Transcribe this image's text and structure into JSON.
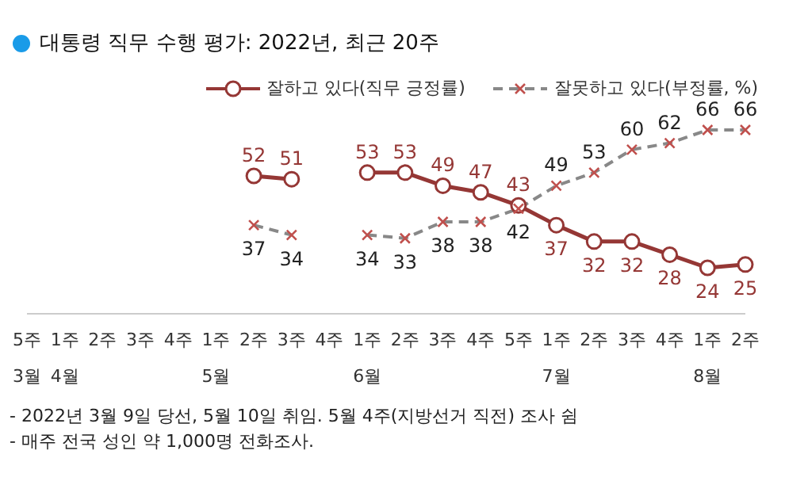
{
  "chart_data": {
    "type": "line",
    "title": "대통령 직무 수행 평가: 2022년, 최근 20주",
    "categories": [
      "5주\n3월",
      "1주\n4월",
      "2주",
      "3주",
      "4주",
      "1주\n5월",
      "2주",
      "3주",
      "4주",
      "1주\n6월",
      "2주",
      "3주",
      "4주",
      "5주",
      "1주\n7월",
      "2주",
      "3주",
      "4주",
      "1주\n8월",
      "2주"
    ],
    "series": [
      {
        "name": "잘하고 있다(직무 긍정률)",
        "color": "#953735",
        "marker": "circle",
        "line_style": "solid",
        "values": [
          null,
          null,
          null,
          null,
          null,
          null,
          52,
          51,
          null,
          53,
          53,
          49,
          47,
          43,
          37,
          32,
          32,
          28,
          24,
          25
        ]
      },
      {
        "name": "잘못하고 있다(부정률, %)",
        "color": "#888888",
        "marker": "cross",
        "line_style": "dashed",
        "values": [
          null,
          null,
          null,
          null,
          null,
          null,
          37,
          34,
          null,
          34,
          33,
          38,
          38,
          42,
          49,
          53,
          60,
          62,
          66,
          66
        ]
      }
    ],
    "tick_labels": "x",
    "data_labels": true,
    "legend": "top right",
    "grid": false,
    "annotations": [
      "- 2022년 3월 9일 당선, 5월 10일 취임. 5월 4주(지방선거 직전) 조사 쉼",
      "- 매주 전국 성인 약 1,000명 전화조사."
    ]
  }
}
